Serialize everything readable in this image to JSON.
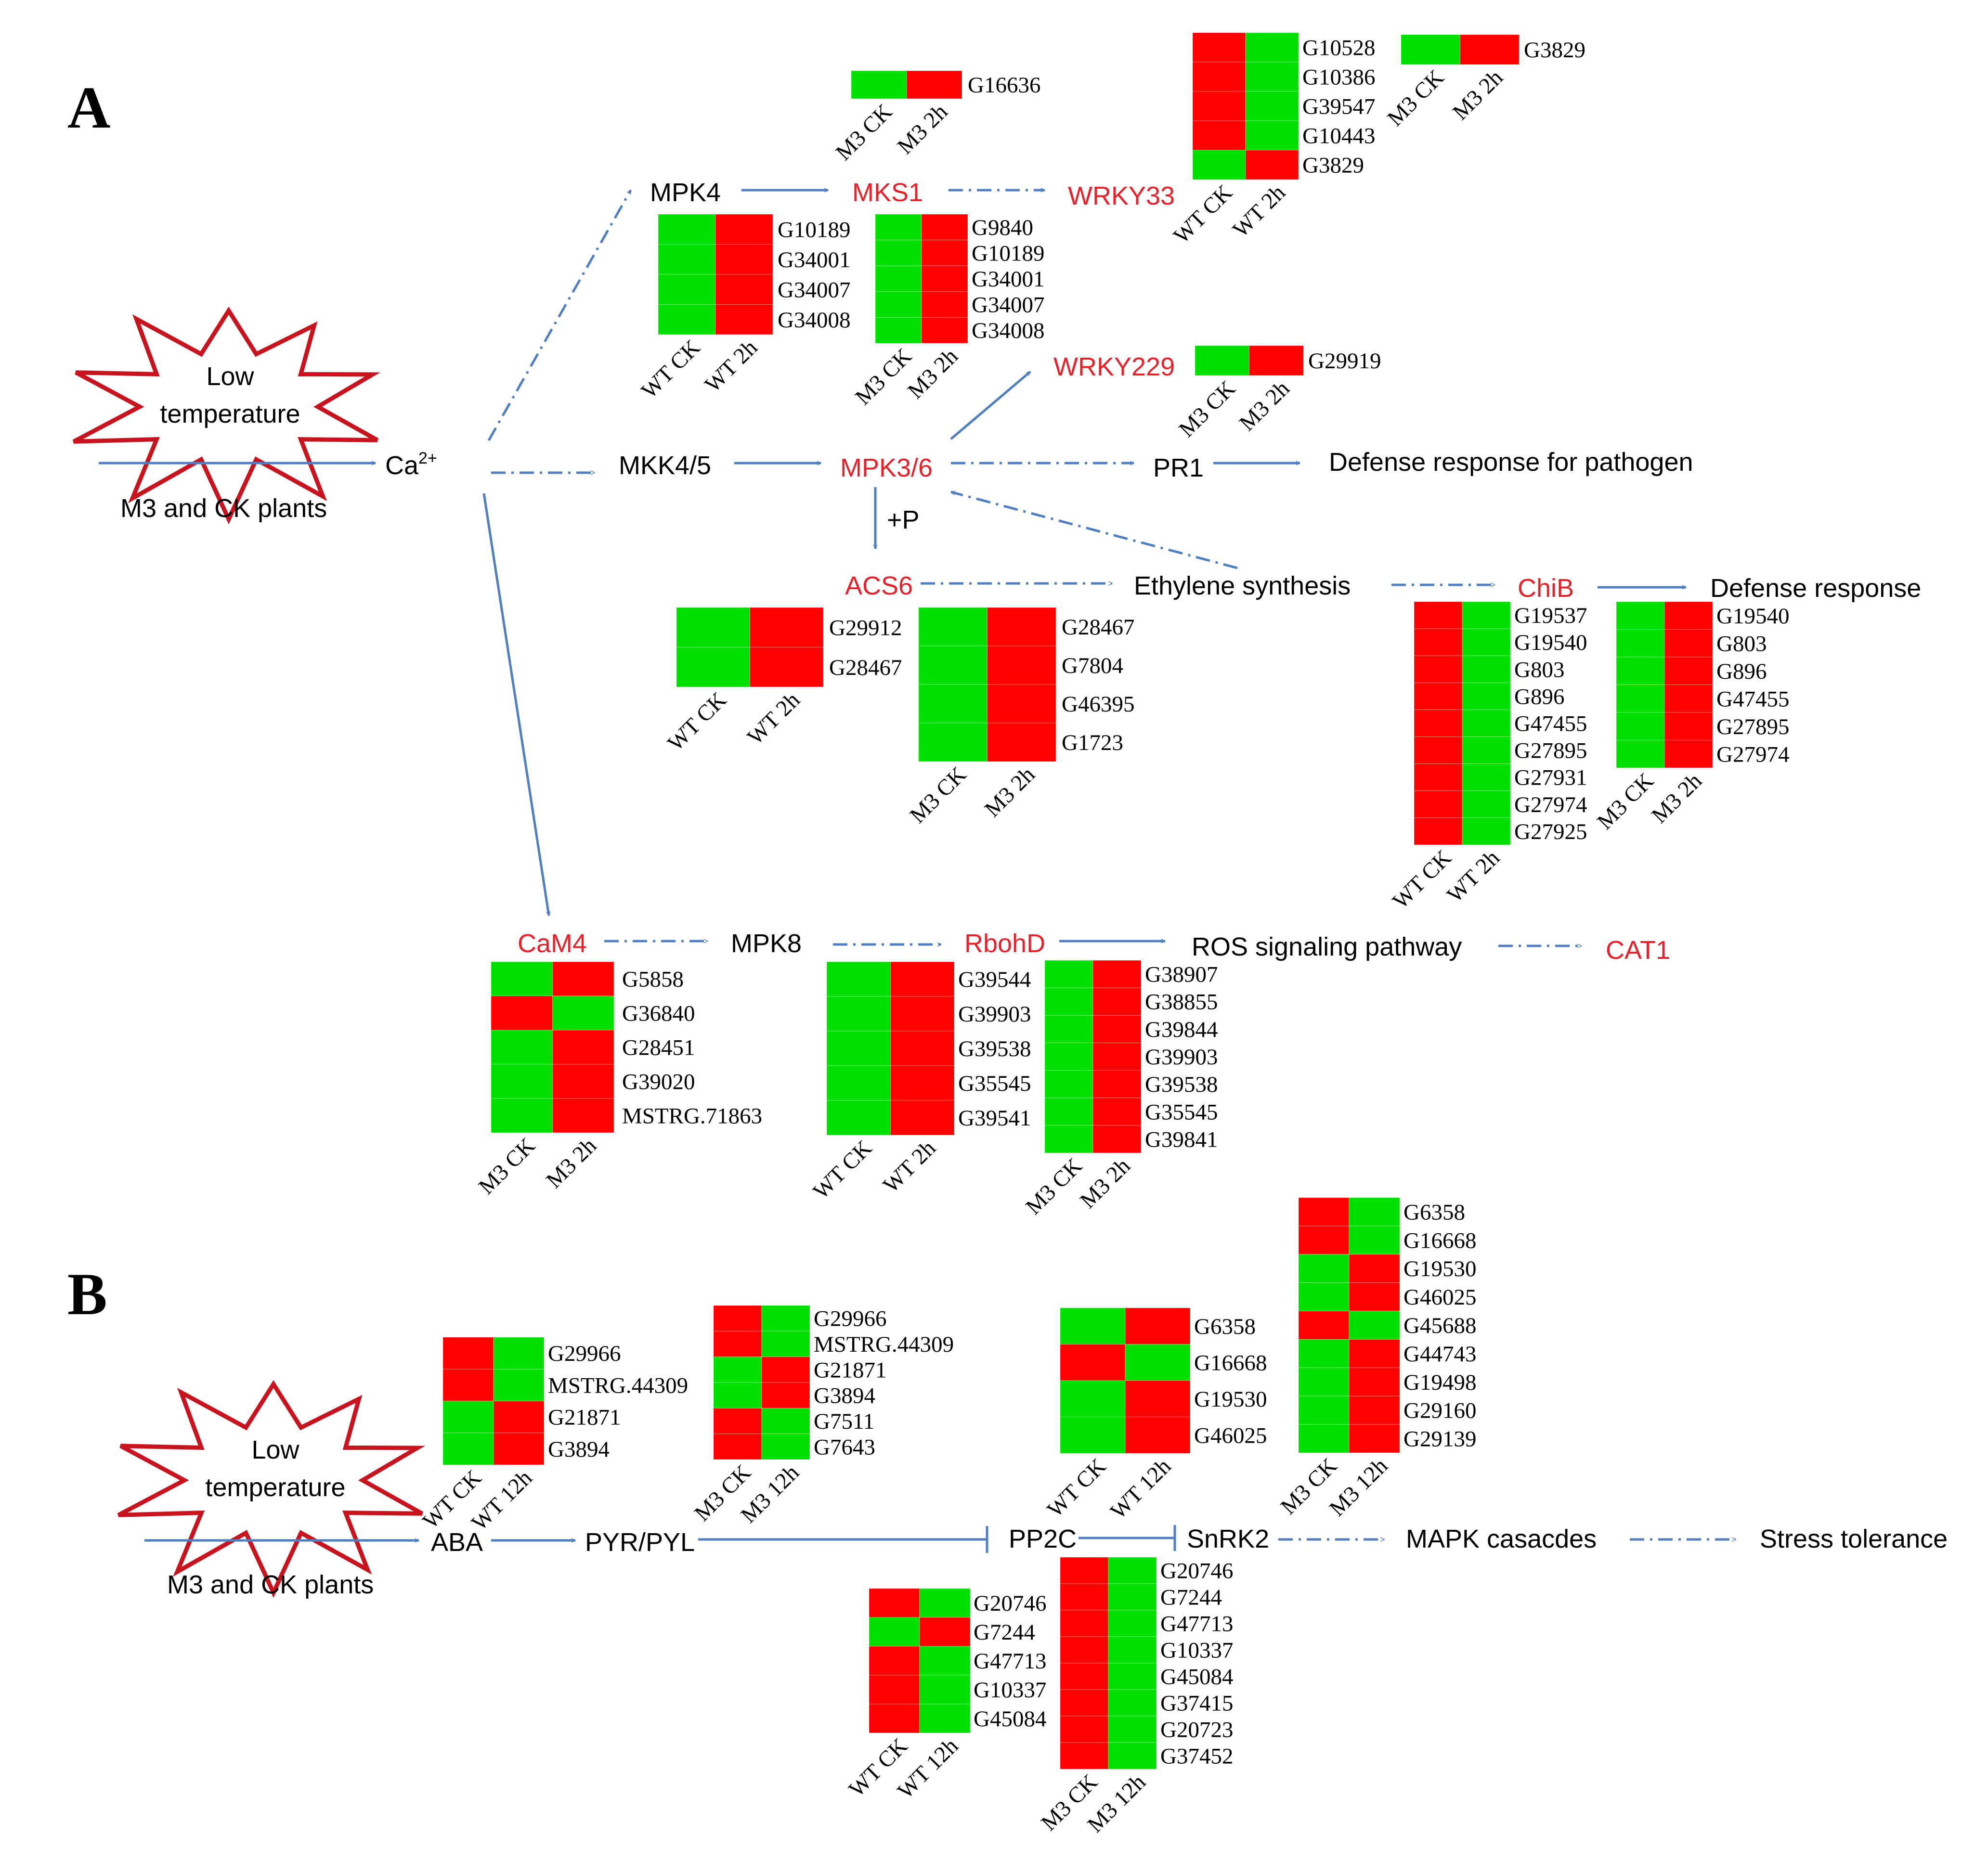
{
  "colors": {
    "up": "#ff0000",
    "down": "#00e000",
    "accent": "#e8202a",
    "arrow": "#4f7fc0",
    "burst": "#c8141e"
  },
  "panel_a": {
    "letter": "A",
    "burst_line1": "Low",
    "burst_line2": "temperature",
    "plants": "M3 and CK plants",
    "ca": "Ca",
    "ca_sup": "2+",
    "nodes": {
      "mpk4": "MPK4",
      "mks1": "MKS1",
      "wrky33": "WRKY33",
      "wrky229": "WRKY229",
      "mkk45": "MKK4/5",
      "mpk36": "MPK3/6",
      "pr1": "PR1",
      "defense_pathogen": "Defense response  for pathogen",
      "phos": "+P",
      "acs6": "ACS6",
      "ethylene": "Ethylene synthesis",
      "chib": "ChiB",
      "defense": "Defense response",
      "cam4": "CaM4",
      "mpk8": "MPK8",
      "rbohd": "RbohD",
      "ros": "ROS signaling pathway",
      "cat1": "CAT1"
    },
    "heatmaps": {
      "mks1_m3": {
        "cols": [
          "M3 CK",
          "M3 2h"
        ],
        "genes": [
          "G16636"
        ],
        "cells": [
          [
            "down",
            "up"
          ]
        ]
      },
      "mpk4_wt": {
        "cols": [
          "WT CK",
          "WT 2h"
        ],
        "genes": [
          "G10189",
          "G34001",
          "G34007",
          "G34008"
        ],
        "cells": [
          [
            "down",
            "up"
          ],
          [
            "down",
            "up"
          ],
          [
            "down",
            "up"
          ],
          [
            "down",
            "up"
          ]
        ]
      },
      "mks1_mid": {
        "cols": [
          "M3 CK",
          "M3 2h"
        ],
        "genes": [
          "G9840",
          "G10189",
          "G34001",
          "G34007",
          "G34008"
        ],
        "cells": [
          [
            "down",
            "up"
          ],
          [
            "down",
            "up"
          ],
          [
            "down",
            "up"
          ],
          [
            "down",
            "up"
          ],
          [
            "down",
            "up"
          ]
        ]
      },
      "wrky33_wt": {
        "cols": [
          "WT CK",
          "WT 2h"
        ],
        "genes": [
          "G10528",
          "G10386",
          "G39547",
          "G10443",
          "G3829"
        ],
        "cells": [
          [
            "up",
            "down"
          ],
          [
            "up",
            "down"
          ],
          [
            "up",
            "down"
          ],
          [
            "up",
            "down"
          ],
          [
            "down",
            "up"
          ]
        ]
      },
      "wrky33_m3": {
        "cols": [
          "M3 CK",
          "M3 2h"
        ],
        "genes": [
          "G3829"
        ],
        "cells": [
          [
            "down",
            "up"
          ]
        ]
      },
      "wrky229_m3": {
        "cols": [
          "M3 CK",
          "M3 2h"
        ],
        "genes": [
          "G29919"
        ],
        "cells": [
          [
            "down",
            "up"
          ]
        ]
      },
      "acs6_wt": {
        "cols": [
          "WT CK",
          "WT 2h"
        ],
        "genes": [
          "G29912",
          "G28467"
        ],
        "cells": [
          [
            "down",
            "up"
          ],
          [
            "down",
            "up"
          ]
        ]
      },
      "acs6_m3": {
        "cols": [
          "M3 CK",
          "M3 2h"
        ],
        "genes": [
          "G28467",
          "G7804",
          "G46395",
          "G1723"
        ],
        "cells": [
          [
            "down",
            "up"
          ],
          [
            "down",
            "up"
          ],
          [
            "down",
            "up"
          ],
          [
            "down",
            "up"
          ]
        ]
      },
      "chib_wt": {
        "cols": [
          "WT CK",
          "WT 2h"
        ],
        "genes": [
          "G19537",
          "G19540",
          "G803",
          "G896",
          "G47455",
          "G27895",
          "G27931",
          "G27974",
          "G27925"
        ],
        "cells": [
          [
            "up",
            "down"
          ],
          [
            "up",
            "down"
          ],
          [
            "up",
            "down"
          ],
          [
            "up",
            "down"
          ],
          [
            "up",
            "down"
          ],
          [
            "up",
            "down"
          ],
          [
            "up",
            "down"
          ],
          [
            "up",
            "down"
          ],
          [
            "up",
            "down"
          ]
        ]
      },
      "chib_m3": {
        "cols": [
          "M3 CK",
          "M3 2h"
        ],
        "genes": [
          "G19540",
          "G803",
          "G896",
          "G47455",
          "G27895",
          "G27974"
        ],
        "cells": [
          [
            "down",
            "up"
          ],
          [
            "down",
            "up"
          ],
          [
            "down",
            "up"
          ],
          [
            "down",
            "up"
          ],
          [
            "down",
            "up"
          ],
          [
            "down",
            "up"
          ]
        ]
      },
      "cam4_m3": {
        "cols": [
          "M3 CK",
          "M3 2h"
        ],
        "genes": [
          "G5858",
          "G36840",
          "G28451",
          "G39020",
          "MSTRG.71863"
        ],
        "cells": [
          [
            "down",
            "up"
          ],
          [
            "up",
            "down"
          ],
          [
            "down",
            "up"
          ],
          [
            "down",
            "up"
          ],
          [
            "down",
            "up"
          ]
        ]
      },
      "rbohd_wt": {
        "cols": [
          "WT CK",
          "WT 2h"
        ],
        "genes": [
          "G39544",
          "G39903",
          "G39538",
          "G35545",
          "G39541"
        ],
        "cells": [
          [
            "down",
            "up"
          ],
          [
            "down",
            "up"
          ],
          [
            "down",
            "up"
          ],
          [
            "down",
            "up"
          ],
          [
            "down",
            "up"
          ]
        ]
      },
      "rbohd_m3": {
        "cols": [
          "M3 CK",
          "M3 2h"
        ],
        "genes": [
          "G38907",
          "G38855",
          "G39844",
          "G39903",
          "G39538",
          "G35545",
          "G39841"
        ],
        "cells": [
          [
            "down",
            "up"
          ],
          [
            "down",
            "up"
          ],
          [
            "down",
            "up"
          ],
          [
            "down",
            "up"
          ],
          [
            "down",
            "up"
          ],
          [
            "down",
            "up"
          ],
          [
            "down",
            "up"
          ]
        ]
      }
    }
  },
  "panel_b": {
    "letter": "B",
    "burst_line1": "Low",
    "burst_line2": "temperature",
    "plants": "M3 and CK plants",
    "nodes": {
      "aba": "ABA",
      "pyr": "PYR/PYL",
      "pp2c": "PP2C",
      "snrk2": "SnRK2",
      "mapk": "MAPK casacdes",
      "stress": "Stress tolerance"
    },
    "heatmaps": {
      "pyr_wt": {
        "cols": [
          "WT CK",
          "WT 12h"
        ],
        "genes": [
          "G29966",
          "MSTRG.44309",
          "G21871",
          "G3894"
        ],
        "cells": [
          [
            "up",
            "down"
          ],
          [
            "up",
            "down"
          ],
          [
            "down",
            "up"
          ],
          [
            "down",
            "up"
          ]
        ]
      },
      "pyr_m3": {
        "cols": [
          "M3 CK",
          "M3 12h"
        ],
        "genes": [
          "G29966",
          "MSTRG.44309",
          "G21871",
          "G3894",
          "G7511",
          "G7643"
        ],
        "cells": [
          [
            "up",
            "down"
          ],
          [
            "up",
            "down"
          ],
          [
            "down",
            "up"
          ],
          [
            "down",
            "up"
          ],
          [
            "up",
            "down"
          ],
          [
            "up",
            "down"
          ]
        ]
      },
      "pp2c_wt": {
        "cols": [
          "WT CK",
          "WT 12h"
        ],
        "genes": [
          "G6358",
          "G16668",
          "G19530",
          "G46025"
        ],
        "cells": [
          [
            "down",
            "up"
          ],
          [
            "up",
            "down"
          ],
          [
            "down",
            "up"
          ],
          [
            "down",
            "up"
          ]
        ]
      },
      "pp2c_m3": {
        "cols": [
          "M3 CK",
          "M3 12h"
        ],
        "genes": [
          "G6358",
          "G16668",
          "G19530",
          "G46025",
          "G45688",
          "G44743",
          "G19498",
          "G29160",
          "G29139"
        ],
        "cells": [
          [
            "up",
            "down"
          ],
          [
            "up",
            "down"
          ],
          [
            "down",
            "up"
          ],
          [
            "down",
            "up"
          ],
          [
            "up",
            "down"
          ],
          [
            "down",
            "up"
          ],
          [
            "down",
            "up"
          ],
          [
            "down",
            "up"
          ],
          [
            "down",
            "up"
          ]
        ]
      },
      "snrk2_wt": {
        "cols": [
          "WT CK",
          "WT 12h"
        ],
        "genes": [
          "G20746",
          "G7244",
          "G47713",
          "G10337",
          "G45084"
        ],
        "cells": [
          [
            "up",
            "down"
          ],
          [
            "down",
            "up"
          ],
          [
            "up",
            "down"
          ],
          [
            "up",
            "down"
          ],
          [
            "up",
            "down"
          ]
        ]
      },
      "snrk2_m3": {
        "cols": [
          "M3 CK",
          "M3 12h"
        ],
        "genes": [
          "G20746",
          "G7244",
          "G47713",
          "G10337",
          "G45084",
          "G37415",
          "G20723",
          "G37452"
        ],
        "cells": [
          [
            "up",
            "down"
          ],
          [
            "up",
            "down"
          ],
          [
            "up",
            "down"
          ],
          [
            "up",
            "down"
          ],
          [
            "up",
            "down"
          ],
          [
            "up",
            "down"
          ],
          [
            "up",
            "down"
          ],
          [
            "up",
            "down"
          ]
        ]
      }
    }
  }
}
